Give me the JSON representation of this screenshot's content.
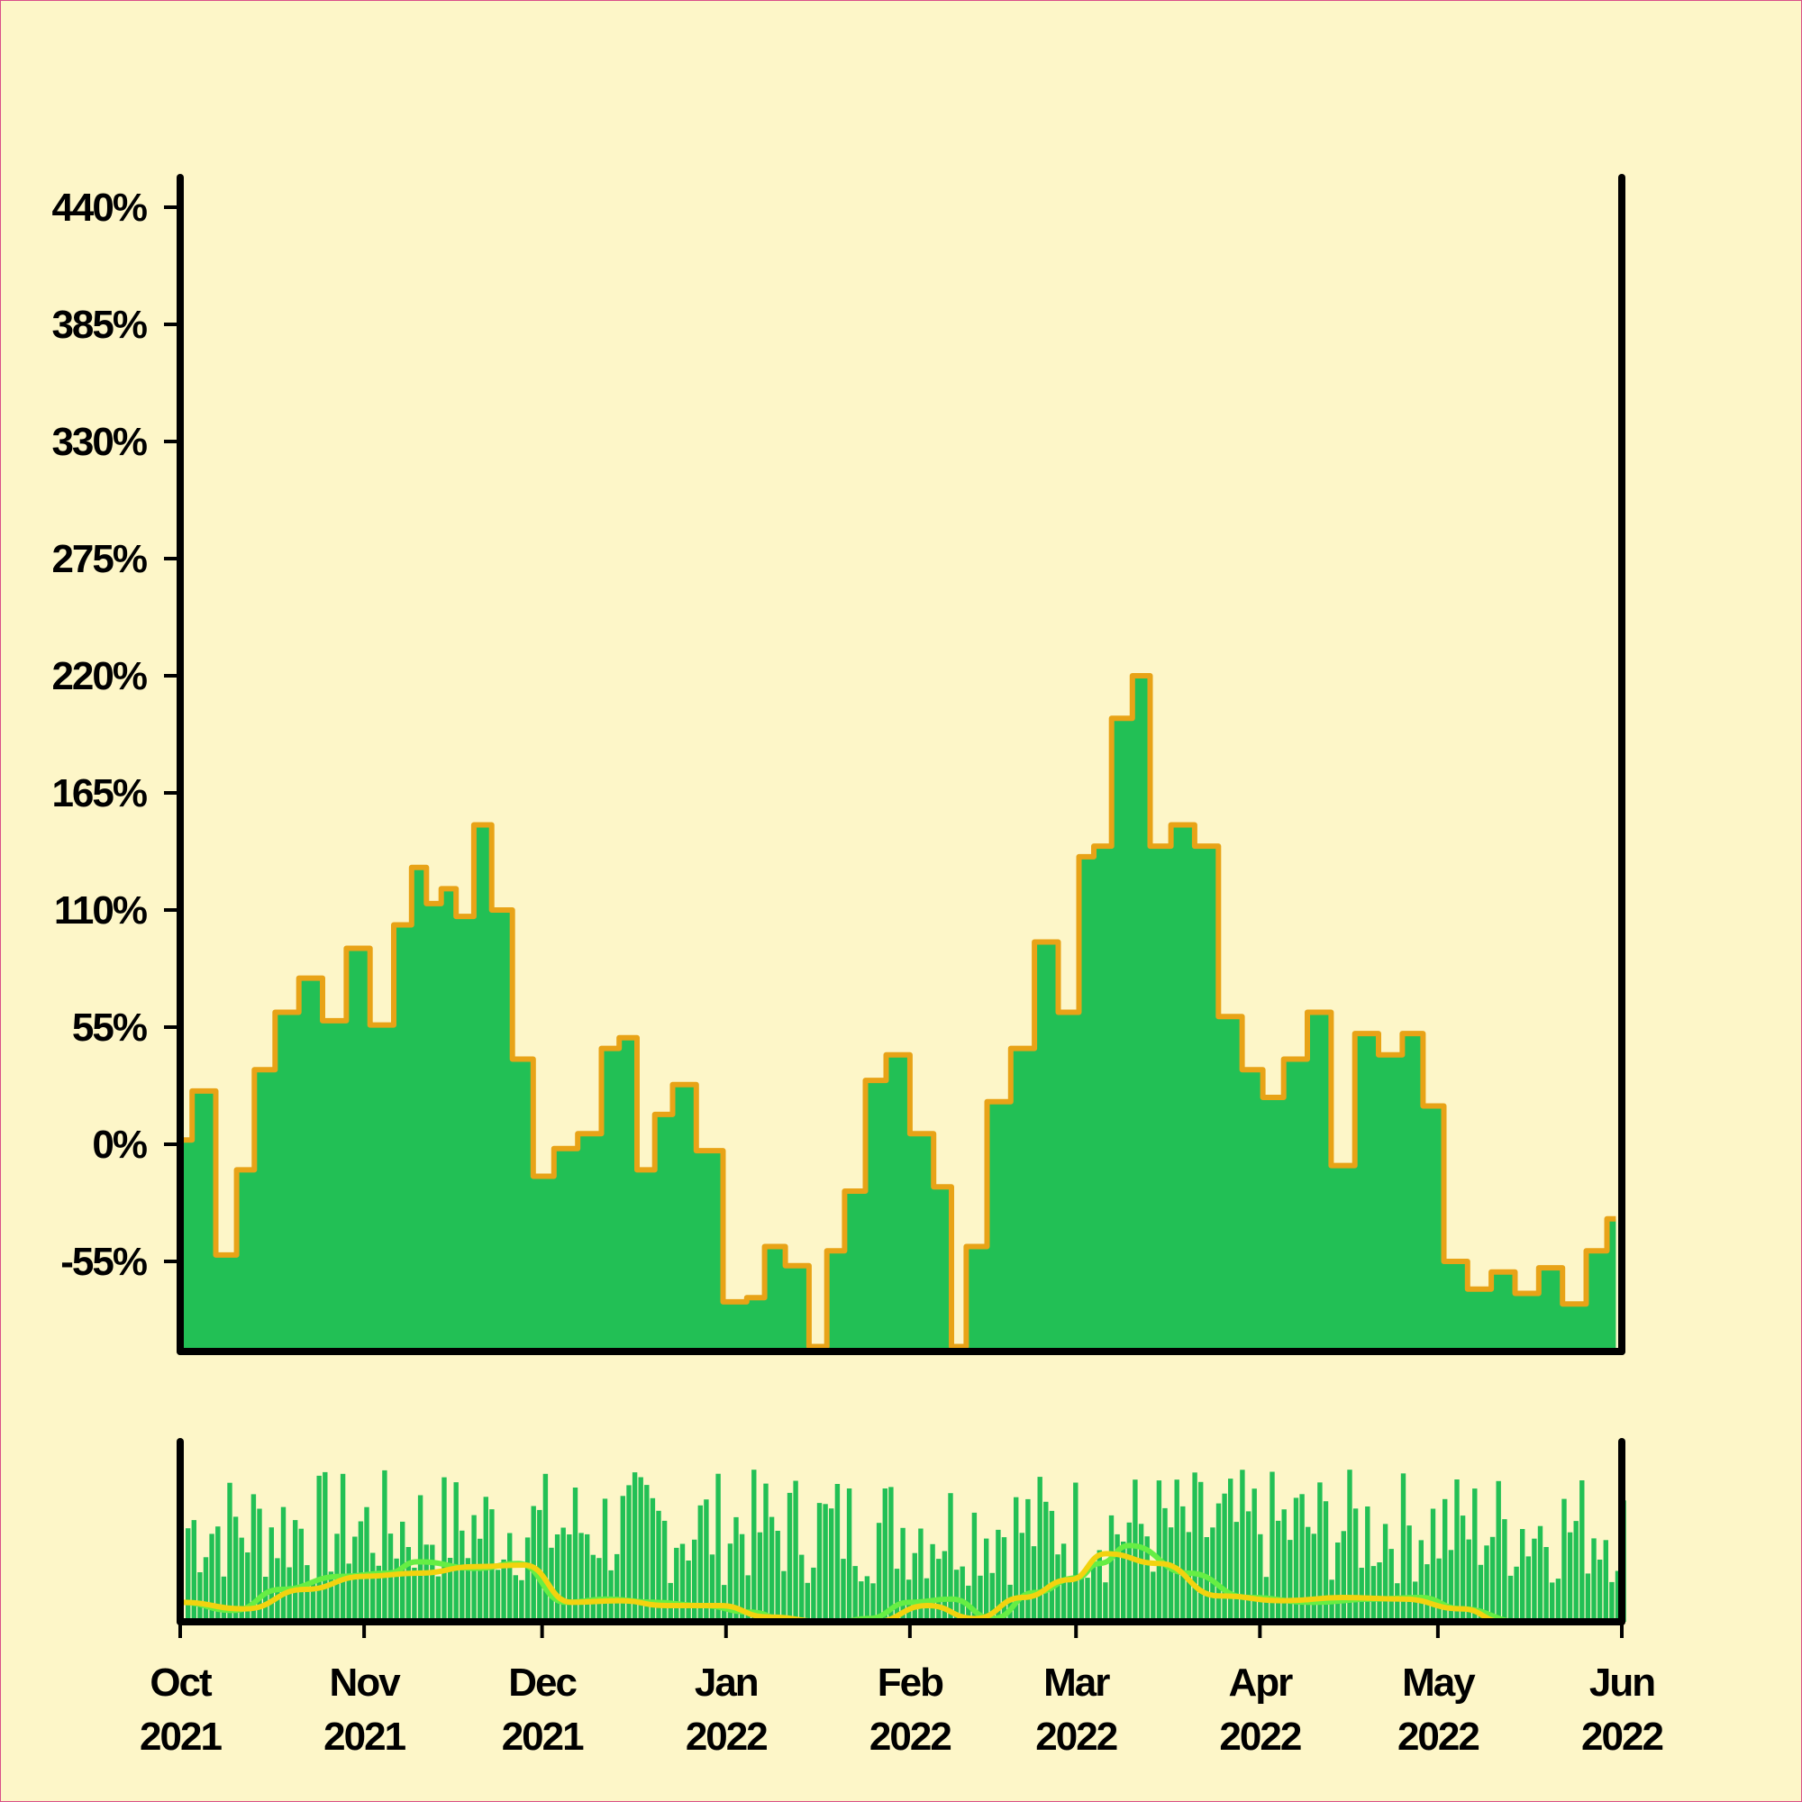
{
  "colors": {
    "background": "#fdf6c8",
    "area_fill": "#22c055",
    "area_edge": "#e8a317",
    "volume_bar": "#22c055",
    "ma_fast": "#66ee44",
    "ma_slow": "#f2d30f",
    "axis": "#000000"
  },
  "chart_data": [
    {
      "type": "area",
      "title": "",
      "xlabel": "",
      "ylabel": "",
      "ylim": [
        -94,
        440
      ],
      "yticks": [
        "440%",
        "385%",
        "330%",
        "275%",
        "220%",
        "165%",
        "110%",
        "55%",
        "0%",
        "-55%"
      ],
      "ytick_values": [
        440,
        385,
        330,
        275,
        220,
        165,
        110,
        55,
        0,
        -55
      ],
      "grid": false,
      "legend": "none",
      "series": [
        {
          "kind": "cumulative-change",
          "x": [
            "2021-10-01",
            "2021-10-05",
            "2021-10-09",
            "2021-10-12",
            "2021-10-15",
            "2021-10-19",
            "2021-10-23",
            "2021-10-27",
            "2021-10-31",
            "2021-11-04",
            "2021-11-08",
            "2021-11-10",
            "2021-11-13",
            "2021-11-15",
            "2021-11-18",
            "2021-11-21",
            "2021-11-24",
            "2021-11-28",
            "2021-12-01",
            "2021-12-05",
            "2021-12-09",
            "2021-12-13",
            "2021-12-15",
            "2021-12-19",
            "2021-12-21",
            "2021-12-25",
            "2021-12-29",
            "2022-01-03",
            "2022-01-06",
            "2022-01-09",
            "2022-01-13",
            "2022-01-17",
            "2022-01-19",
            "2022-01-23",
            "2022-01-26",
            "2022-01-30",
            "2022-02-03",
            "2022-02-07",
            "2022-02-09",
            "2022-02-12",
            "2022-02-16",
            "2022-02-20",
            "2022-02-24",
            "2022-02-28",
            "2022-03-03",
            "2022-03-05",
            "2022-03-09",
            "2022-03-12",
            "2022-03-15",
            "2022-03-19",
            "2022-03-23",
            "2022-03-27",
            "2022-03-31",
            "2022-04-03",
            "2022-04-07",
            "2022-04-11",
            "2022-04-15",
            "2022-04-19",
            "2022-04-23",
            "2022-04-27",
            "2022-04-30",
            "2022-05-04",
            "2022-05-08",
            "2022-05-12",
            "2022-05-16",
            "2022-05-20",
            "2022-05-24",
            "2022-05-28",
            "2022-05-31"
          ],
          "values": [
            2,
            25,
            -52,
            -12,
            35,
            62,
            78,
            58,
            92,
            56,
            103,
            130,
            113,
            120,
            107,
            150,
            110,
            40,
            -15,
            -2,
            5,
            45,
            50,
            -12,
            14,
            28,
            -3,
            -74,
            -72,
            -48,
            -57,
            -95,
            -50,
            -22,
            30,
            42,
            5,
            -20,
            -95,
            -48,
            20,
            45,
            95,
            62,
            135,
            140,
            200,
            220,
            140,
            150,
            140,
            60,
            35,
            22,
            40,
            62,
            -10,
            52,
            42,
            52,
            18,
            -55,
            -68,
            -60,
            -70,
            -58,
            -75,
            -50,
            -35
          ]
        }
      ]
    },
    {
      "type": "bar",
      "title": "",
      "xlabel": "",
      "ylabel": "",
      "description_of_axes": "volume panel, no y tick labels",
      "x_tick_labels": [
        {
          "month": "Oct",
          "year": "2021"
        },
        {
          "month": "Nov",
          "year": "2021"
        },
        {
          "month": "Dec",
          "year": "2021"
        },
        {
          "month": "Jan",
          "year": "2022"
        },
        {
          "month": "Feb",
          "year": "2022"
        },
        {
          "month": "Mar",
          "year": "2022"
        },
        {
          "month": "Apr",
          "year": "2022"
        },
        {
          "month": "May",
          "year": "2022"
        },
        {
          "month": "Jun",
          "year": "2022"
        }
      ],
      "x_tick_dates": [
        "2021-10-01",
        "2021-11-01",
        "2021-12-01",
        "2022-01-01",
        "2022-02-01",
        "2022-03-01",
        "2022-04-01",
        "2022-05-01",
        "2022-06-01"
      ],
      "xlim": [
        "2021-10-01",
        "2022-06-01"
      ],
      "series": [
        {
          "kind": "moving-average-fast",
          "x": [
            "2021-10-01",
            "2021-10-10",
            "2021-10-18",
            "2021-10-28",
            "2021-11-05",
            "2021-11-10",
            "2021-11-20",
            "2021-11-27",
            "2021-12-05",
            "2021-12-12",
            "2021-12-20",
            "2021-12-28",
            "2022-01-05",
            "2022-01-12",
            "2022-01-20",
            "2022-01-25",
            "2022-02-01",
            "2022-02-08",
            "2022-02-15",
            "2022-02-22",
            "2022-03-01",
            "2022-03-05",
            "2022-03-10",
            "2022-03-20",
            "2022-03-30",
            "2022-04-10",
            "2022-04-20",
            "2022-04-28",
            "2022-05-05",
            "2022-05-15",
            "2022-05-31"
          ],
          "values": [
            0.12,
            0.07,
            0.2,
            0.28,
            0.3,
            0.37,
            0.33,
            0.36,
            0.12,
            0.14,
            0.12,
            0.1,
            0.06,
            0.0,
            0.0,
            0.02,
            0.12,
            0.14,
            0.02,
            0.18,
            0.27,
            0.36,
            0.47,
            0.3,
            0.15,
            0.12,
            0.14,
            0.15,
            0.08,
            0.0,
            0.0
          ]
        },
        {
          "kind": "moving-average-slow",
          "x": [
            "2021-10-01",
            "2021-10-12",
            "2021-10-22",
            "2021-11-01",
            "2021-11-10",
            "2021-11-20",
            "2021-11-28",
            "2021-12-06",
            "2021-12-14",
            "2021-12-22",
            "2021-12-31",
            "2022-01-08",
            "2022-01-18",
            "2022-01-26",
            "2022-02-04",
            "2022-02-12",
            "2022-02-20",
            "2022-02-28",
            "2022-03-06",
            "2022-03-15",
            "2022-03-25",
            "2022-04-05",
            "2022-04-15",
            "2022-04-25",
            "2022-05-05",
            "2022-05-12",
            "2022-05-31"
          ],
          "values": [
            0.12,
            0.08,
            0.2,
            0.28,
            0.3,
            0.34,
            0.35,
            0.12,
            0.13,
            0.1,
            0.1,
            0.03,
            0.0,
            0.0,
            0.1,
            0.02,
            0.15,
            0.26,
            0.42,
            0.36,
            0.16,
            0.13,
            0.15,
            0.14,
            0.08,
            0.0,
            0.0
          ]
        }
      ]
    }
  ]
}
